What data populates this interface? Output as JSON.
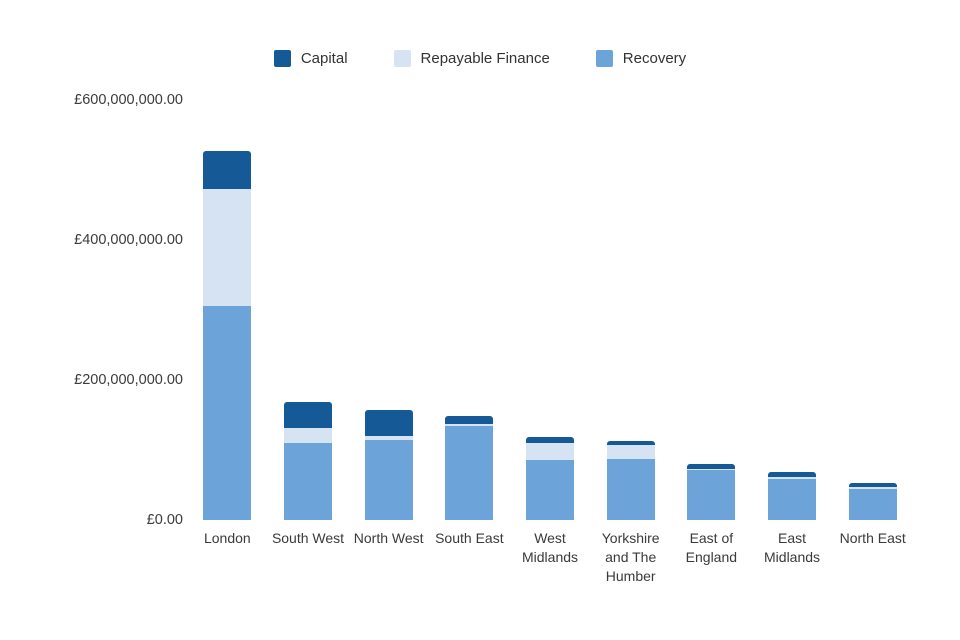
{
  "chart_data": {
    "type": "bar",
    "stacked": true,
    "title": "",
    "xlabel": "",
    "ylabel": "",
    "grid": false,
    "legend_position": "top",
    "ylim": [
      0,
      600000000
    ],
    "y_ticks": [
      {
        "value": 600000000,
        "label": "£600,000,000.00"
      },
      {
        "value": 400000000,
        "label": "£400,000,000.00"
      },
      {
        "value": 200000000,
        "label": "£200,000,000.00"
      },
      {
        "value": 0,
        "label": "£0.00"
      }
    ],
    "categories": [
      "London",
      "South West",
      "North West",
      "South East",
      "West Midlands",
      "Yorkshire and The Humber",
      "East of England",
      "East Midlands",
      "North East"
    ],
    "series": [
      {
        "name": "Capital",
        "color": "#155A96",
        "values": [
          54000000,
          38000000,
          37000000,
          11000000,
          9000000,
          6000000,
          7000000,
          6000000,
          6000000
        ]
      },
      {
        "name": "Repayable Finance",
        "color": "#D5E3F2",
        "values": [
          167000000,
          21000000,
          6000000,
          3000000,
          24000000,
          20000000,
          2000000,
          3000000,
          3000000
        ]
      },
      {
        "name": "Recovery",
        "color": "#6CA4DA",
        "values": [
          306000000,
          110000000,
          114000000,
          134000000,
          86000000,
          87000000,
          71000000,
          59000000,
          44000000
        ]
      }
    ]
  }
}
